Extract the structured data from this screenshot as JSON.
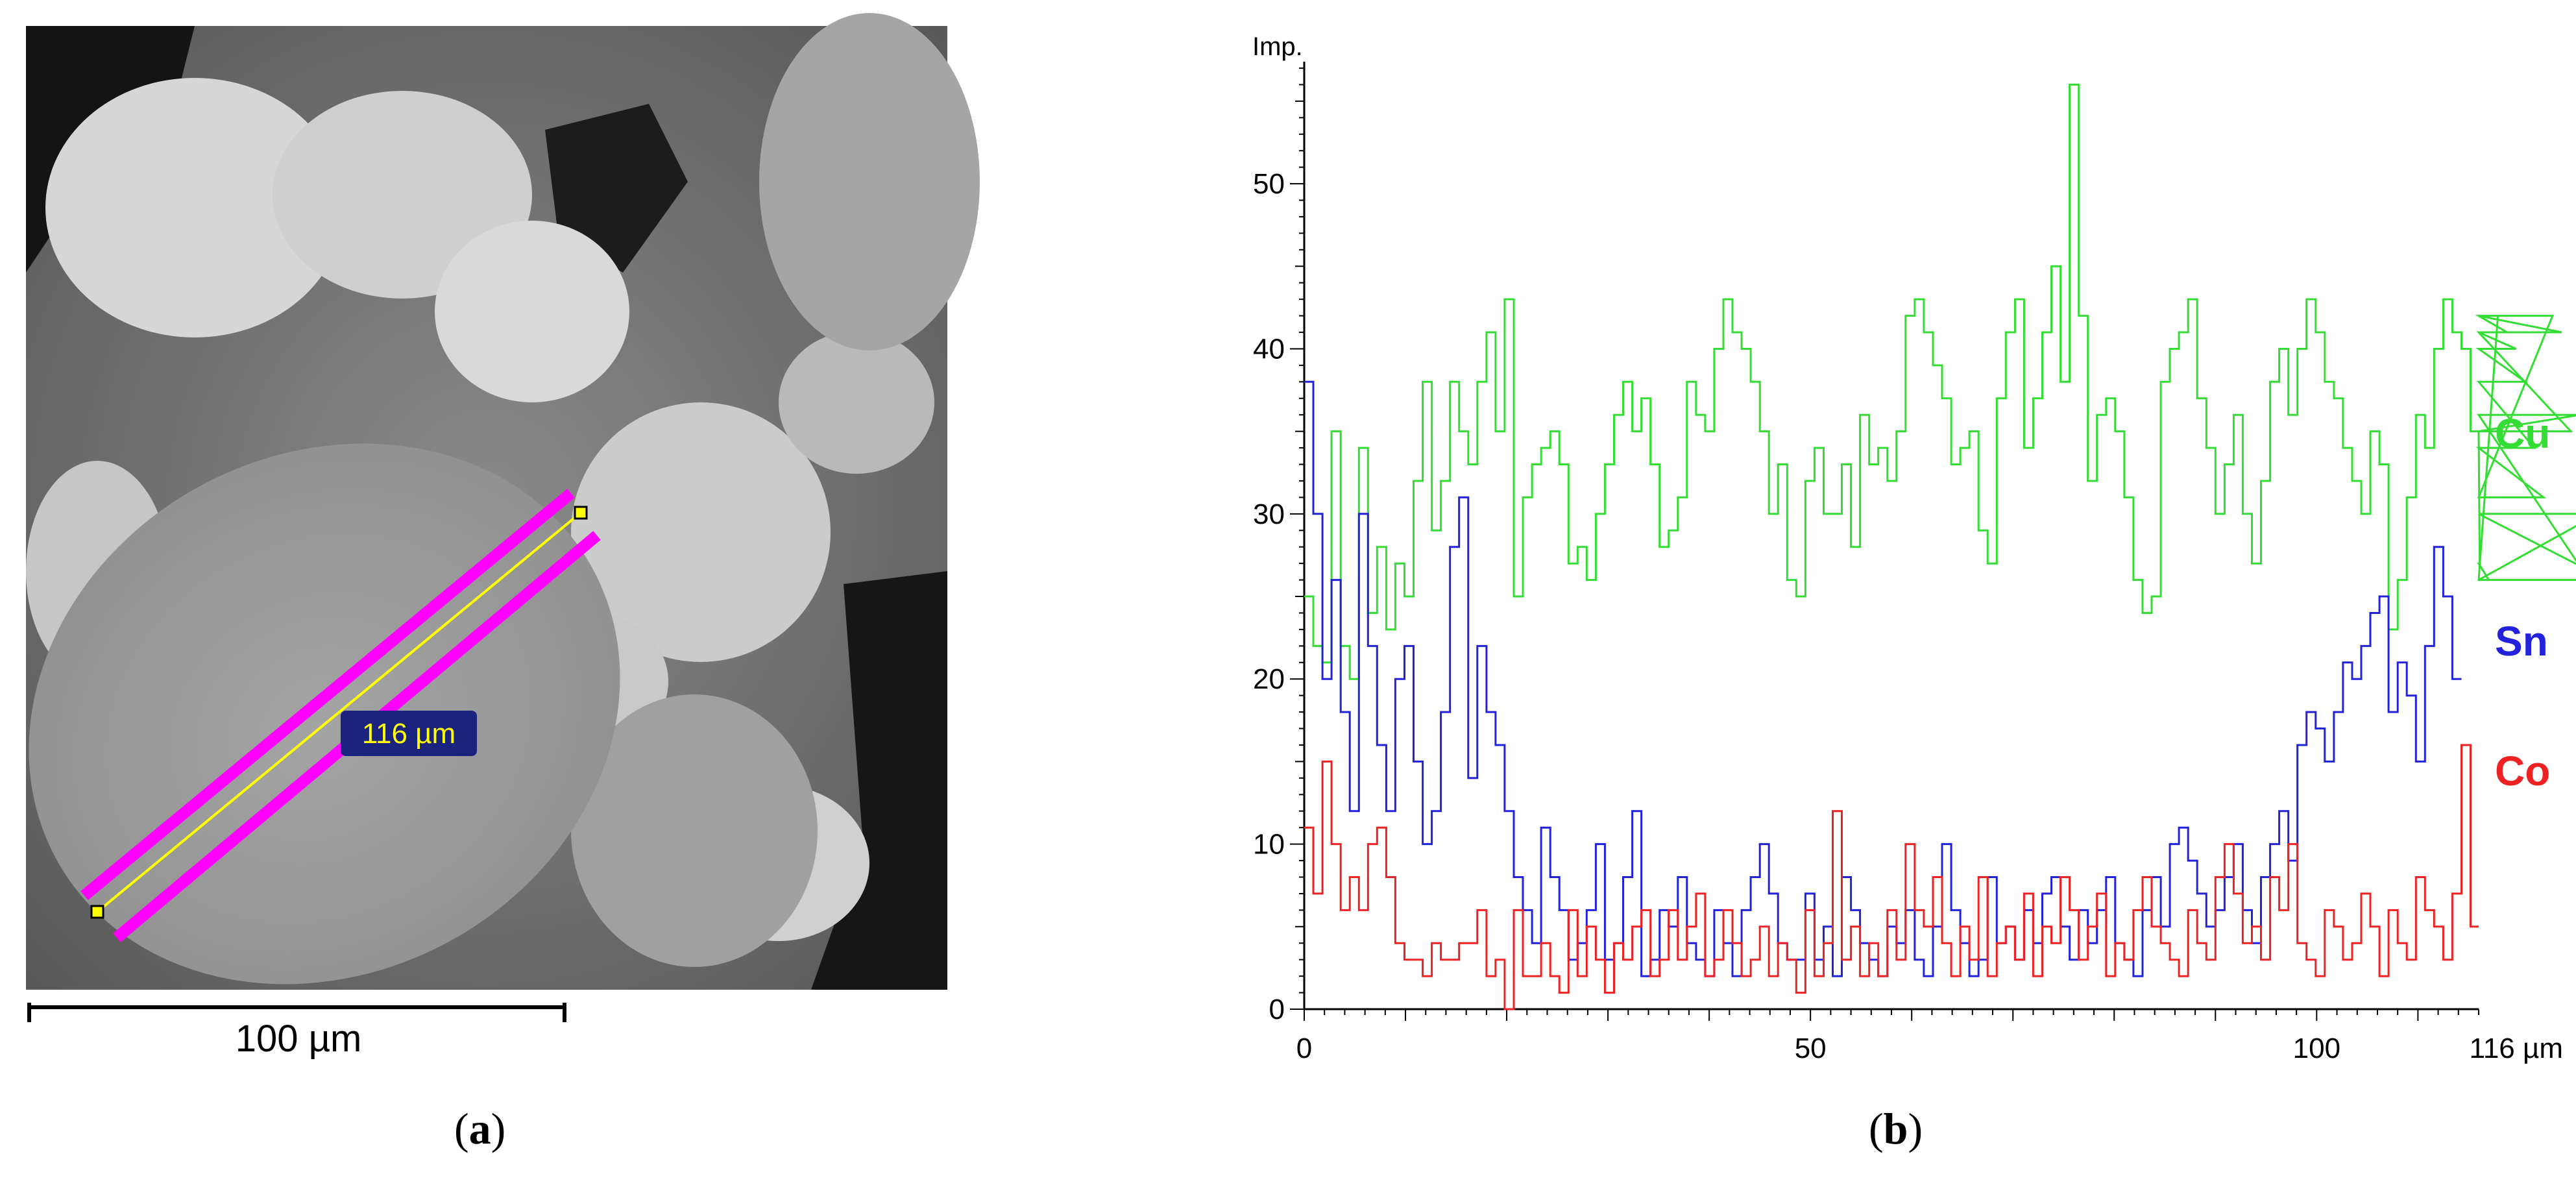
{
  "panel_a": {
    "label_letter": "a",
    "measurement_label": "116 µm",
    "scale_bar_label": "100 µm",
    "colors": {
      "line": "#ff00ff",
      "marker": "#ffff00",
      "tag_bg": "#1a237e",
      "tag_text": "#ffff00"
    }
  },
  "panel_b": {
    "label_letter": "b"
  },
  "chart_data": {
    "type": "line",
    "ylabel": "Imp.",
    "xlim": [
      0,
      116
    ],
    "ylim": [
      0,
      57
    ],
    "xticks": [
      0,
      50,
      100
    ],
    "x_end_label": "116 µm",
    "yticks": [
      0,
      10,
      20,
      30,
      40,
      50
    ],
    "grid": false,
    "legend_placement": "right",
    "step": 0.9,
    "series": [
      {
        "name": "Cu",
        "color": "#33dd33",
        "values": [
          25,
          22,
          21,
          35,
          22,
          20,
          34,
          24,
          28,
          23,
          27,
          25,
          32,
          38,
          29,
          32,
          38,
          35,
          33,
          38,
          41,
          35,
          43,
          25,
          31,
          33,
          34,
          35,
          33,
          27,
          28,
          26,
          30,
          33,
          36,
          38,
          35,
          37,
          33,
          28,
          29,
          31,
          38,
          36,
          35,
          40,
          43,
          41,
          40,
          38,
          35,
          30,
          33,
          26,
          25,
          32,
          34,
          30,
          30,
          33,
          28,
          36,
          33,
          34,
          32,
          35,
          42,
          43,
          41,
          39,
          37,
          33,
          34,
          35,
          29,
          27,
          37,
          41,
          43,
          34,
          37,
          41,
          45,
          38,
          56,
          42,
          32,
          36,
          37,
          35,
          31,
          26,
          24,
          25,
          38,
          40,
          41,
          43,
          37,
          34,
          30,
          33,
          36,
          30,
          27,
          32,
          38,
          40,
          36,
          40,
          43,
          41,
          38,
          37,
          34,
          32,
          30,
          35,
          33,
          23,
          26,
          31,
          36,
          34,
          40,
          43,
          41,
          40,
          35,
          27,
          26,
          42,
          41,
          40,
          38,
          34,
          31,
          42,
          41,
          35,
          36,
          26,
          30,
          26
        ],
        "legend_label": "Cu"
      },
      {
        "name": "Sn",
        "color": "#2222dd",
        "values": [
          38,
          30,
          20,
          26,
          18,
          12,
          30,
          22,
          16,
          12,
          20,
          22,
          15,
          10,
          12,
          18,
          28,
          31,
          14,
          22,
          18,
          16,
          12,
          8,
          6,
          4,
          11,
          8,
          6,
          3,
          4,
          6,
          10,
          3,
          4,
          8,
          12,
          2,
          3,
          6,
          5,
          8,
          4,
          3,
          2,
          6,
          4,
          2,
          6,
          8,
          10,
          7,
          4,
          3,
          3,
          7,
          3,
          5,
          2,
          8,
          6,
          4,
          3,
          2,
          5,
          4,
          6,
          3,
          2,
          5,
          10,
          6,
          4,
          2,
          3,
          8,
          4,
          5,
          3,
          6,
          4,
          7,
          8,
          5,
          3,
          6,
          4,
          6,
          8,
          4,
          3,
          2,
          6,
          8,
          5,
          10,
          11,
          9,
          7,
          5,
          6,
          8,
          10,
          6,
          4,
          8,
          10,
          12,
          9,
          16,
          18,
          17,
          15,
          18,
          21,
          20,
          22,
          24,
          25,
          18,
          21,
          19,
          15,
          22,
          28,
          25,
          20
        ],
        "legend_label": "Sn"
      },
      {
        "name": "Co",
        "color": "#ee2222",
        "values": [
          11,
          7,
          15,
          10,
          6,
          8,
          6,
          10,
          11,
          8,
          4,
          3,
          3,
          2,
          4,
          3,
          3,
          4,
          4,
          6,
          2,
          3,
          0,
          6,
          2,
          2,
          4,
          2,
          1,
          6,
          2,
          5,
          3,
          1,
          4,
          3,
          5,
          6,
          2,
          3,
          6,
          3,
          5,
          7,
          2,
          3,
          6,
          4,
          2,
          3,
          5,
          2,
          4,
          3,
          1,
          6,
          2,
          4,
          12,
          3,
          5,
          2,
          4,
          2,
          6,
          3,
          10,
          6,
          5,
          8,
          4,
          2,
          5,
          3,
          8,
          2,
          4,
          5,
          3,
          7,
          2,
          5,
          4,
          8,
          6,
          3,
          5,
          7,
          2,
          4,
          3,
          6,
          8,
          5,
          4,
          3,
          2,
          6,
          4,
          3,
          8,
          10,
          7,
          4,
          5,
          3,
          8,
          6,
          10,
          4,
          3,
          2,
          6,
          5,
          3,
          4,
          7,
          5,
          2,
          6,
          4,
          3,
          8,
          6,
          5,
          3,
          7,
          16,
          5
        ],
        "legend_label": "Co"
      }
    ]
  }
}
